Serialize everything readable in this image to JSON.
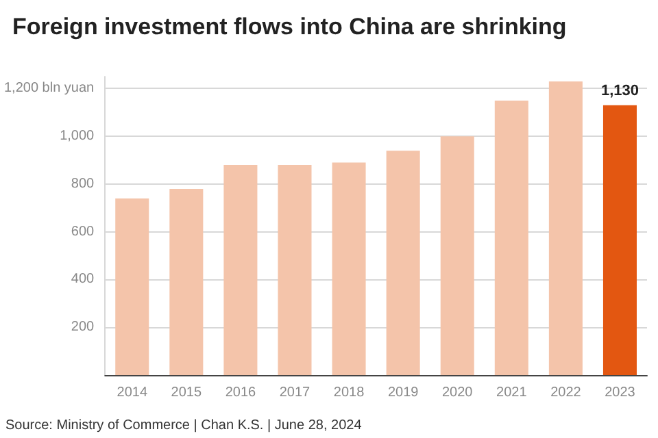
{
  "chart_data": {
    "type": "bar",
    "title": "Foreign investment flows into China are shrinking",
    "categories": [
      "2014",
      "2015",
      "2016",
      "2017",
      "2018",
      "2019",
      "2020",
      "2021",
      "2022",
      "2023"
    ],
    "values": [
      740,
      780,
      880,
      880,
      890,
      940,
      1000,
      1150,
      1230,
      1130
    ],
    "colors": [
      "#f4c4aa",
      "#f4c4aa",
      "#f4c4aa",
      "#f4c4aa",
      "#f4c4aa",
      "#f4c4aa",
      "#f4c4aa",
      "#f4c4aa",
      "#f4c4aa",
      "#e35711"
    ],
    "value_labels": [
      null,
      null,
      null,
      null,
      null,
      null,
      null,
      null,
      null,
      "1,130"
    ],
    "ylim": [
      0,
      1250
    ],
    "yticks": [
      {
        "value": 0,
        "label": null
      },
      200,
      400,
      600,
      800,
      "1,000",
      {
        "value": 1200,
        "label": "1,200 bln yuan"
      }
    ],
    "grid": "y",
    "annotations": [
      "Source: Ministry of Commerce | Chan K.S. | June 28, 2024"
    ]
  }
}
